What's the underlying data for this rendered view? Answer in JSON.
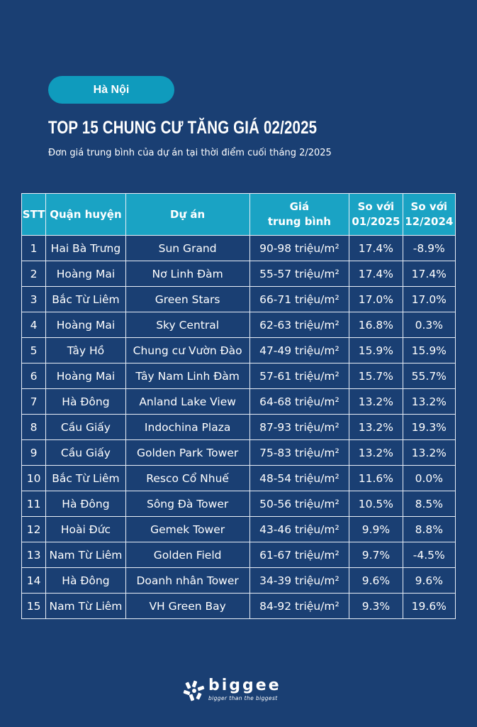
{
  "header": {
    "location": "Hà Nội",
    "title": "TOP 15 CHUNG CƯ TĂNG GIÁ 02/2025",
    "subtitle": "Đơn giá trung bình của dự án tại thời điểm cuối tháng 2/2025"
  },
  "table": {
    "headers": {
      "stt": "STT",
      "district": "Quận huyện",
      "project": "Dự án",
      "price_line1": "Giá",
      "price_line2": "trung bình",
      "m1_line1": "So với",
      "m1_line2": "01/2025",
      "m2_line1": "So với",
      "m2_line2": "12/2024"
    },
    "rows": [
      {
        "stt": "1",
        "district": "Hai Bà Trưng",
        "project": "Sun Grand",
        "price": "90-98 triệu/m²",
        "vs_jan": "17.4%",
        "vs_dec": "-8.9%"
      },
      {
        "stt": "2",
        "district": "Hoàng Mai",
        "project": "Nơ Linh Đàm",
        "price": "55-57 triệu/m²",
        "vs_jan": "17.4%",
        "vs_dec": "17.4%"
      },
      {
        "stt": "3",
        "district": "Bắc Từ Liêm",
        "project": "Green Stars",
        "price": "66-71 triệu/m²",
        "vs_jan": "17.0%",
        "vs_dec": "17.0%"
      },
      {
        "stt": "4",
        "district": "Hoàng Mai",
        "project": "Sky Central",
        "price": "62-63 triệu/m²",
        "vs_jan": "16.8%",
        "vs_dec": "0.3%"
      },
      {
        "stt": "5",
        "district": "Tây Hồ",
        "project": "Chung cư Vườn Đào",
        "price": "47-49 triệu/m²",
        "vs_jan": "15.9%",
        "vs_dec": "15.9%"
      },
      {
        "stt": "6",
        "district": "Hoàng Mai",
        "project": "Tây Nam Linh Đàm",
        "price": "57-61 triệu/m²",
        "vs_jan": "15.7%",
        "vs_dec": "55.7%"
      },
      {
        "stt": "7",
        "district": "Hà Đông",
        "project": "Anland Lake View",
        "price": "64-68 triệu/m²",
        "vs_jan": "13.2%",
        "vs_dec": "13.2%"
      },
      {
        "stt": "8",
        "district": "Cầu Giấy",
        "project": "Indochina Plaza",
        "price": "87-93 triệu/m²",
        "vs_jan": "13.2%",
        "vs_dec": "19.3%"
      },
      {
        "stt": "9",
        "district": "Cầu Giấy",
        "project": "Golden Park Tower",
        "price": "75-83 triệu/m²",
        "vs_jan": "13.2%",
        "vs_dec": "13.2%"
      },
      {
        "stt": "10",
        "district": "Bắc Từ Liêm",
        "project": "Resco Cổ Nhuế",
        "price": "48-54 triệu/m²",
        "vs_jan": "11.6%",
        "vs_dec": "0.0%"
      },
      {
        "stt": "11",
        "district": "Hà Đông",
        "project": "Sông Đà Tower",
        "price": "50-56 triệu/m²",
        "vs_jan": "10.5%",
        "vs_dec": "8.5%"
      },
      {
        "stt": "12",
        "district": "Hoài Đức",
        "project": "Gemek Tower",
        "price": "43-46 triệu/m²",
        "vs_jan": "9.9%",
        "vs_dec": "8.8%"
      },
      {
        "stt": "13",
        "district": "Nam Từ Liêm",
        "project": "Golden Field",
        "price": "61-67 triệu/m²",
        "vs_jan": "9.7%",
        "vs_dec": "-4.5%"
      },
      {
        "stt": "14",
        "district": "Hà Đông",
        "project": "Doanh nhân Tower",
        "price": "34-39 triệu/m²",
        "vs_jan": "9.6%",
        "vs_dec": "9.6%"
      },
      {
        "stt": "15",
        "district": "Nam Từ Liêm",
        "project": "VH Green Bay",
        "price": "84-92 triệu/m²",
        "vs_jan": "9.3%",
        "vs_dec": "19.6%"
      }
    ]
  },
  "footer": {
    "brand": "biggee",
    "tagline": "bigger than the biggest",
    "logo_icon": "biggee-logo-icon"
  },
  "colors": {
    "background": "#1a3f73",
    "accent": "#1aa3c4",
    "pill": "#0f9bbd"
  }
}
